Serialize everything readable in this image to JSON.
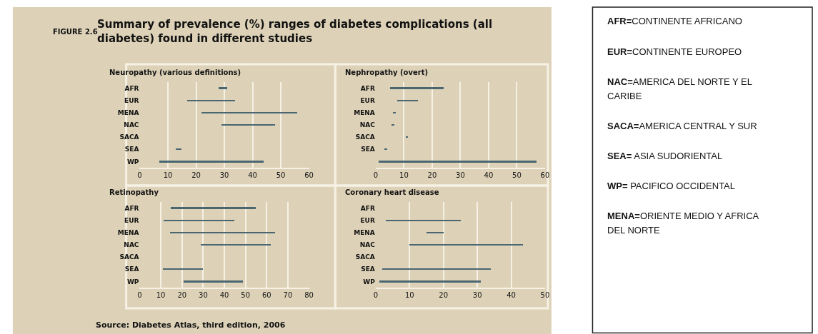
{
  "chart_data": [
    {
      "type": "bar",
      "orientation": "horizontal",
      "title": "Neuropathy (various definitions)",
      "annotations": [
        "FIGURE 2.6",
        "Summary of prevalence (%) ranges of diabetes complications (all diabetes) found in different studies",
        "Source: Diabetes Atlas, third edition, 2006"
      ],
      "categories": [
        "AFR",
        "EUR",
        "MENA",
        "NAC",
        "SACA",
        "SEA",
        "WP"
      ],
      "base": [
        28,
        17,
        22,
        29,
        null,
        13,
        7
      ],
      "values": [
        3,
        17,
        34,
        19,
        null,
        2,
        37
      ],
      "color": "#4a6670",
      "xlim": [
        0,
        60
      ],
      "xticks": [
        0,
        10,
        20,
        30,
        40,
        50,
        60
      ],
      "grid": "x"
    },
    {
      "type": "bar",
      "orientation": "horizontal",
      "title": "Nephropathy (overt)",
      "categories": [
        "AFR",
        "EUR",
        "MENA",
        "NAC",
        "SACA",
        "SEA",
        null
      ],
      "base": [
        5,
        7.5,
        6,
        5.5,
        10.5,
        3,
        1
      ],
      "values": [
        19,
        7.5,
        1,
        1,
        1,
        1,
        56
      ],
      "color": "#4a6670",
      "xlim": [
        0,
        60
      ],
      "xticks": [
        0,
        10,
        20,
        30,
        40,
        50,
        60
      ],
      "grid": "x"
    },
    {
      "type": "bar",
      "orientation": "horizontal",
      "title": "Retinopathy",
      "categories": [
        "AFR",
        "EUR",
        "MENA",
        "NAC",
        "SACA",
        "SEA",
        "WP"
      ],
      "base": [
        15,
        11.5,
        14.5,
        29,
        null,
        11,
        21
      ],
      "values": [
        40,
        33.5,
        49.5,
        33,
        null,
        19,
        28
      ],
      "color": "#4a6670",
      "xlim": [
        0,
        80
      ],
      "xticks": [
        0,
        10,
        20,
        30,
        40,
        50,
        60,
        70,
        80
      ],
      "grid": "x"
    },
    {
      "type": "bar",
      "orientation": "horizontal",
      "title": "Coronary heart disease",
      "categories": [
        "AFR",
        "EUR",
        "MENA",
        "NAC",
        "SACA",
        "SEA",
        "WP"
      ],
      "base": [
        null,
        3,
        15,
        10,
        null,
        2,
        1
      ],
      "values": [
        null,
        22,
        5,
        33.5,
        null,
        32,
        30
      ],
      "color": "#4a6670",
      "xlim": [
        0,
        50
      ],
      "xticks": [
        0,
        10,
        20,
        30,
        40,
        50
      ],
      "grid": "x"
    },
    {
      "type": "other",
      "annotations": [
        "AFR=CONTINENTE AFRICANO",
        "EUR=CONTINENTE EUROPEO",
        "NAC=AMERICA DEL NORTE Y EL CARIBE",
        "SACA=AMERICA CENTRAL Y SUR",
        "SEA= ASIA SUDORIENTAL",
        "WP= PACIFICO OCCIDENTAL",
        "MENA=ORIENTE MEDIO Y AFRICA DEL NORTE"
      ]
    }
  ]
}
